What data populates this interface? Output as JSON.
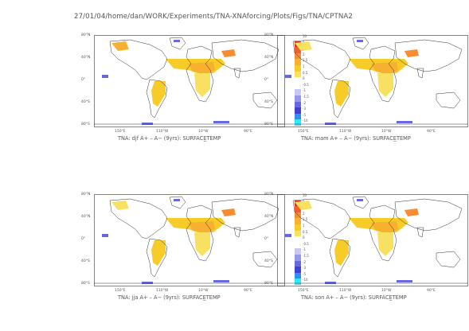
{
  "header": {
    "path": "27/01/04/home/dan/WORK/Experiments/TNA-XNAforcing/Plots/Figs/TNA/CPTNA2"
  },
  "axes": {
    "y_labels": [
      "80°N",
      "40°N",
      "0°",
      "40°S",
      "80°S"
    ],
    "x_labels": [
      "150°E",
      "110°W",
      "10°W",
      "90°E"
    ]
  },
  "colorbar": {
    "labels": [
      "10",
      "5",
      "3",
      "2",
      "1.5",
      "1",
      "0.5",
      "0",
      "-0.5",
      "-1",
      "-1.5",
      "-2",
      "-3",
      "-5",
      "-10"
    ],
    "colors": [
      "#ffffff",
      "#e03020",
      "#f06028",
      "#f88c30",
      "#f8b030",
      "#f8cc28",
      "#f8e060",
      "#ffffff",
      "#ffffff",
      "#c8c8f0",
      "#9898e8",
      "#6868e0",
      "#4040d8",
      "#3090f0",
      "#30e8f8"
    ]
  },
  "panels": [
    {
      "caption": "TNA: djf A+ – A− (9yrs): SURFACE̲TEMP"
    },
    {
      "caption": "TNA: mam A+ – A− (9yrs): SURFACE̲TEMP"
    },
    {
      "caption": "TNA: jja A+ – A− (9yrs): SURFACE̲TEMP"
    },
    {
      "caption": "TNA: son A+ – A− (9yrs): SURFACE̲TEMP"
    }
  ]
}
